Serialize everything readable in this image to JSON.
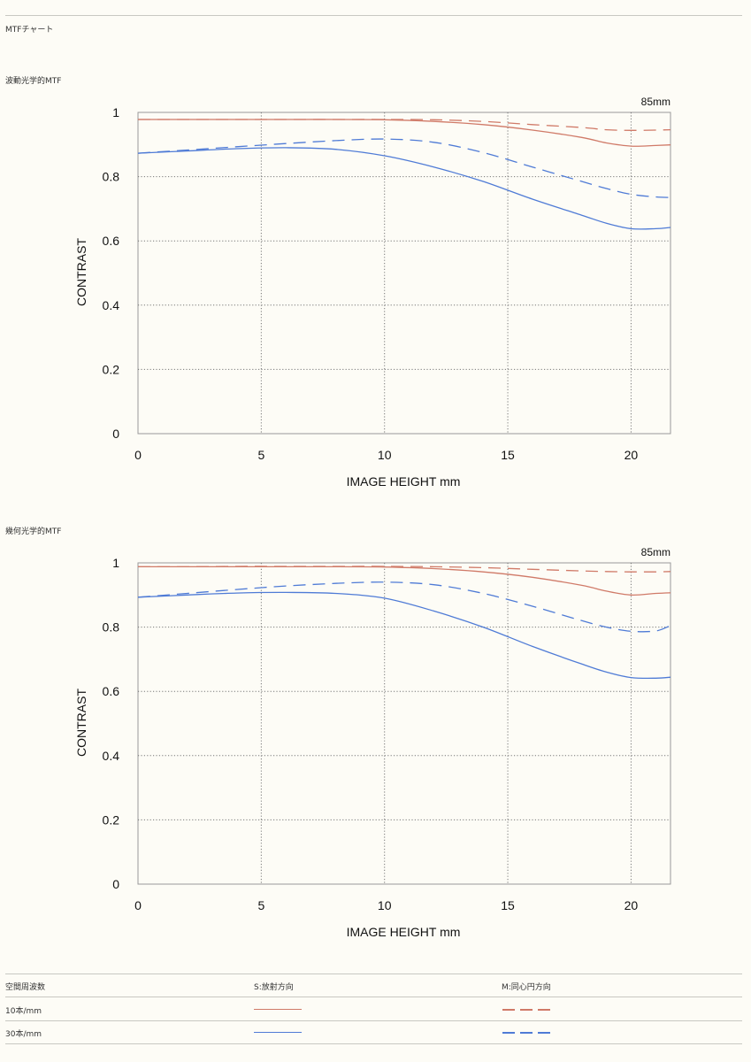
{
  "page": {
    "title": "MTFチャート"
  },
  "colors": {
    "sagittal": "#d07a68",
    "meridional": "#4f7bd6",
    "grid": "#777777",
    "frame": "#999999"
  },
  "chart_data": [
    {
      "type": "line",
      "title": "波動光学的MTF",
      "lens_label": "85mm",
      "xlabel": "IMAGE HEIGHT  mm",
      "ylabel": "CONTRAST",
      "xlim": [
        0,
        21.6
      ],
      "ylim": [
        0,
        1
      ],
      "xticks": [
        0,
        5,
        10,
        15,
        20
      ],
      "yticks": [
        {
          "value": 0,
          "label": "0"
        },
        {
          "value": 0.2,
          "label": "0.2"
        },
        {
          "value": 0.4,
          "label": "0.4"
        },
        {
          "value": 0.6,
          "label": "0.6"
        },
        {
          "value": 0.8,
          "label": "0.8"
        },
        {
          "value": 1,
          "label": "1"
        }
      ],
      "grid": true,
      "x": [
        0,
        2,
        4,
        6,
        8,
        10,
        12,
        14,
        16,
        18,
        19,
        20,
        21,
        21.6
      ],
      "series": [
        {
          "id": "s10",
          "style": "solid",
          "color_key": "sagittal",
          "values": [
            0.978,
            0.978,
            0.978,
            0.978,
            0.978,
            0.977,
            0.972,
            0.962,
            0.945,
            0.922,
            0.905,
            0.895,
            0.897,
            0.899
          ]
        },
        {
          "id": "m10",
          "style": "dashed",
          "color_key": "sagittal",
          "values": [
            0.978,
            0.978,
            0.978,
            0.978,
            0.978,
            0.978,
            0.977,
            0.972,
            0.962,
            0.953,
            0.946,
            0.944,
            0.945,
            0.946
          ]
        },
        {
          "id": "s30",
          "style": "solid",
          "color_key": "meridional",
          "values": [
            0.873,
            0.88,
            0.887,
            0.89,
            0.885,
            0.865,
            0.83,
            0.785,
            0.73,
            0.68,
            0.655,
            0.638,
            0.638,
            0.642
          ]
        },
        {
          "id": "m30",
          "style": "dashed",
          "color_key": "meridional",
          "values": [
            0.873,
            0.883,
            0.893,
            0.903,
            0.912,
            0.917,
            0.907,
            0.875,
            0.83,
            0.785,
            0.763,
            0.745,
            0.737,
            0.735
          ]
        }
      ]
    },
    {
      "type": "line",
      "title": "幾何光学的MTF",
      "lens_label": "85mm",
      "xlabel": "IMAGE HEIGHT  mm",
      "ylabel": "CONTRAST",
      "xlim": [
        0,
        21.6
      ],
      "ylim": [
        0,
        1
      ],
      "xticks": [
        0,
        5,
        10,
        15,
        20
      ],
      "yticks": [
        {
          "value": 0,
          "label": "0"
        },
        {
          "value": 0.2,
          "label": "0.2"
        },
        {
          "value": 0.4,
          "label": "0.4"
        },
        {
          "value": 0.6,
          "label": "0.6"
        },
        {
          "value": 0.8,
          "label": "0.8"
        },
        {
          "value": 1,
          "label": "1"
        }
      ],
      "grid": true,
      "x": [
        0,
        2,
        4,
        6,
        8,
        10,
        12,
        14,
        16,
        18,
        19,
        20,
        21,
        21.6
      ],
      "series": [
        {
          "id": "s10",
          "style": "solid",
          "color_key": "sagittal",
          "values": [
            0.988,
            0.988,
            0.988,
            0.988,
            0.988,
            0.987,
            0.982,
            0.972,
            0.955,
            0.93,
            0.912,
            0.9,
            0.905,
            0.907
          ]
        },
        {
          "id": "m10",
          "style": "dashed",
          "color_key": "sagittal",
          "values": [
            0.988,
            0.988,
            0.989,
            0.989,
            0.989,
            0.989,
            0.988,
            0.985,
            0.98,
            0.975,
            0.973,
            0.972,
            0.972,
            0.973
          ]
        },
        {
          "id": "s30",
          "style": "solid",
          "color_key": "meridional",
          "values": [
            0.893,
            0.9,
            0.906,
            0.908,
            0.905,
            0.89,
            0.85,
            0.8,
            0.74,
            0.685,
            0.66,
            0.643,
            0.641,
            0.644
          ]
        },
        {
          "id": "m30",
          "style": "dashed",
          "color_key": "meridional",
          "values": [
            0.893,
            0.905,
            0.917,
            0.928,
            0.936,
            0.94,
            0.932,
            0.905,
            0.865,
            0.82,
            0.8,
            0.787,
            0.788,
            0.805
          ]
        }
      ]
    }
  ],
  "legend": {
    "header": {
      "freq": "空間周波数",
      "sagittal": "S:放射方向",
      "meridional": "M:同心円方向"
    },
    "rows": [
      {
        "freq": "10本/mm",
        "color_key": "sagittal"
      },
      {
        "freq": "30本/mm",
        "color_key": "meridional"
      }
    ]
  }
}
